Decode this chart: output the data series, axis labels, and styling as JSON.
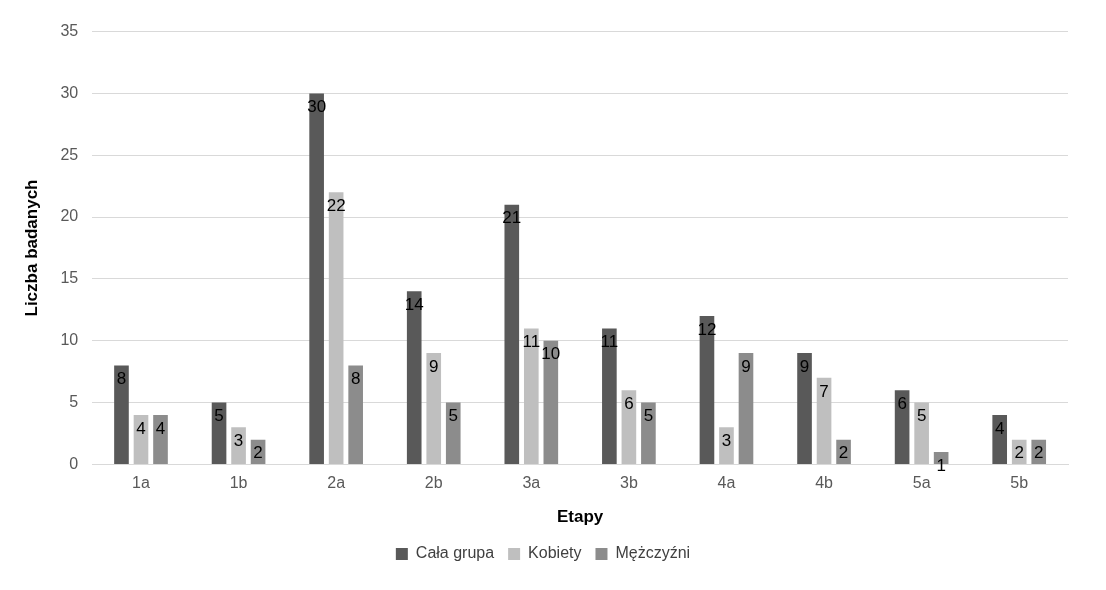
{
  "chart_data": {
    "type": "bar",
    "xlabel": "Etapy",
    "ylabel": "Liczba badanych",
    "categories": [
      "1a",
      "1b",
      "2a",
      "2b",
      "3a",
      "3b",
      "4a",
      "4b",
      "5a",
      "5b"
    ],
    "series": [
      {
        "name": "Cała grupa",
        "color": "#595959",
        "values": [
          8,
          5,
          30,
          14,
          21,
          11,
          12,
          9,
          6,
          4
        ]
      },
      {
        "name": "Kobiety",
        "color": "#bfbfbf",
        "values": [
          4,
          3,
          22,
          9,
          11,
          6,
          3,
          7,
          5,
          2
        ]
      },
      {
        "name": "Mężczyźni",
        "color": "#8c8c8c",
        "values": [
          4,
          2,
          8,
          5,
          10,
          5,
          9,
          2,
          1,
          2
        ]
      }
    ],
    "ylim": [
      0,
      35
    ],
    "yticks": [
      0,
      5,
      10,
      15,
      20,
      25,
      30,
      35
    ],
    "grid": "y",
    "legend": "bottom",
    "data_labels": true
  }
}
